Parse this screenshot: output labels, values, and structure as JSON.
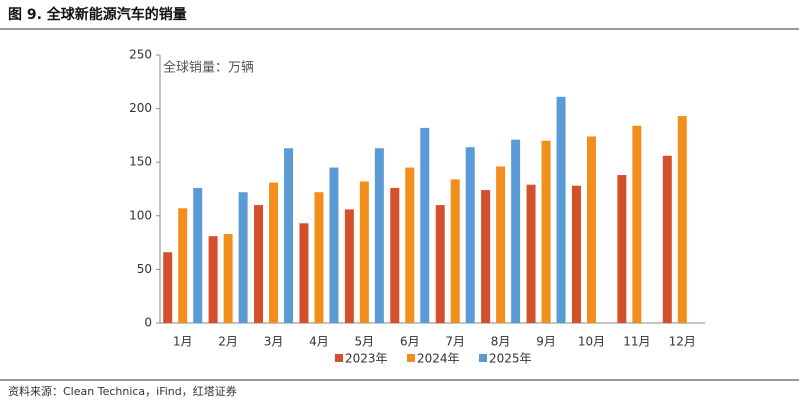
{
  "header": {
    "title": "图 9. 全球新能源汽车的销量"
  },
  "chart_data": {
    "type": "bar",
    "unit_label": "全球销量：万辆",
    "categories": [
      "1月",
      "2月",
      "3月",
      "4月",
      "5月",
      "6月",
      "7月",
      "8月",
      "9月",
      "10月",
      "11月",
      "12月"
    ],
    "series": [
      {
        "name": "2023年",
        "color": "#d4502a",
        "values": [
          66,
          81,
          110,
          93,
          106,
          126,
          110,
          124,
          129,
          128,
          138,
          156
        ]
      },
      {
        "name": "2024年",
        "color": "#f28e1c",
        "values": [
          107,
          83,
          131,
          122,
          132,
          145,
          134,
          146,
          170,
          174,
          184,
          193
        ]
      },
      {
        "name": "2025年",
        "color": "#5b9bd5",
        "values": [
          126,
          122,
          163,
          145,
          163,
          182,
          164,
          171,
          211,
          null,
          null,
          null
        ]
      }
    ],
    "ylim": [
      0,
      250
    ],
    "yticks": [
      0,
      50,
      100,
      150,
      200,
      250
    ],
    "legend": "bottom"
  },
  "source": "资料来源：Clean Technica，iFind，红塔证券"
}
